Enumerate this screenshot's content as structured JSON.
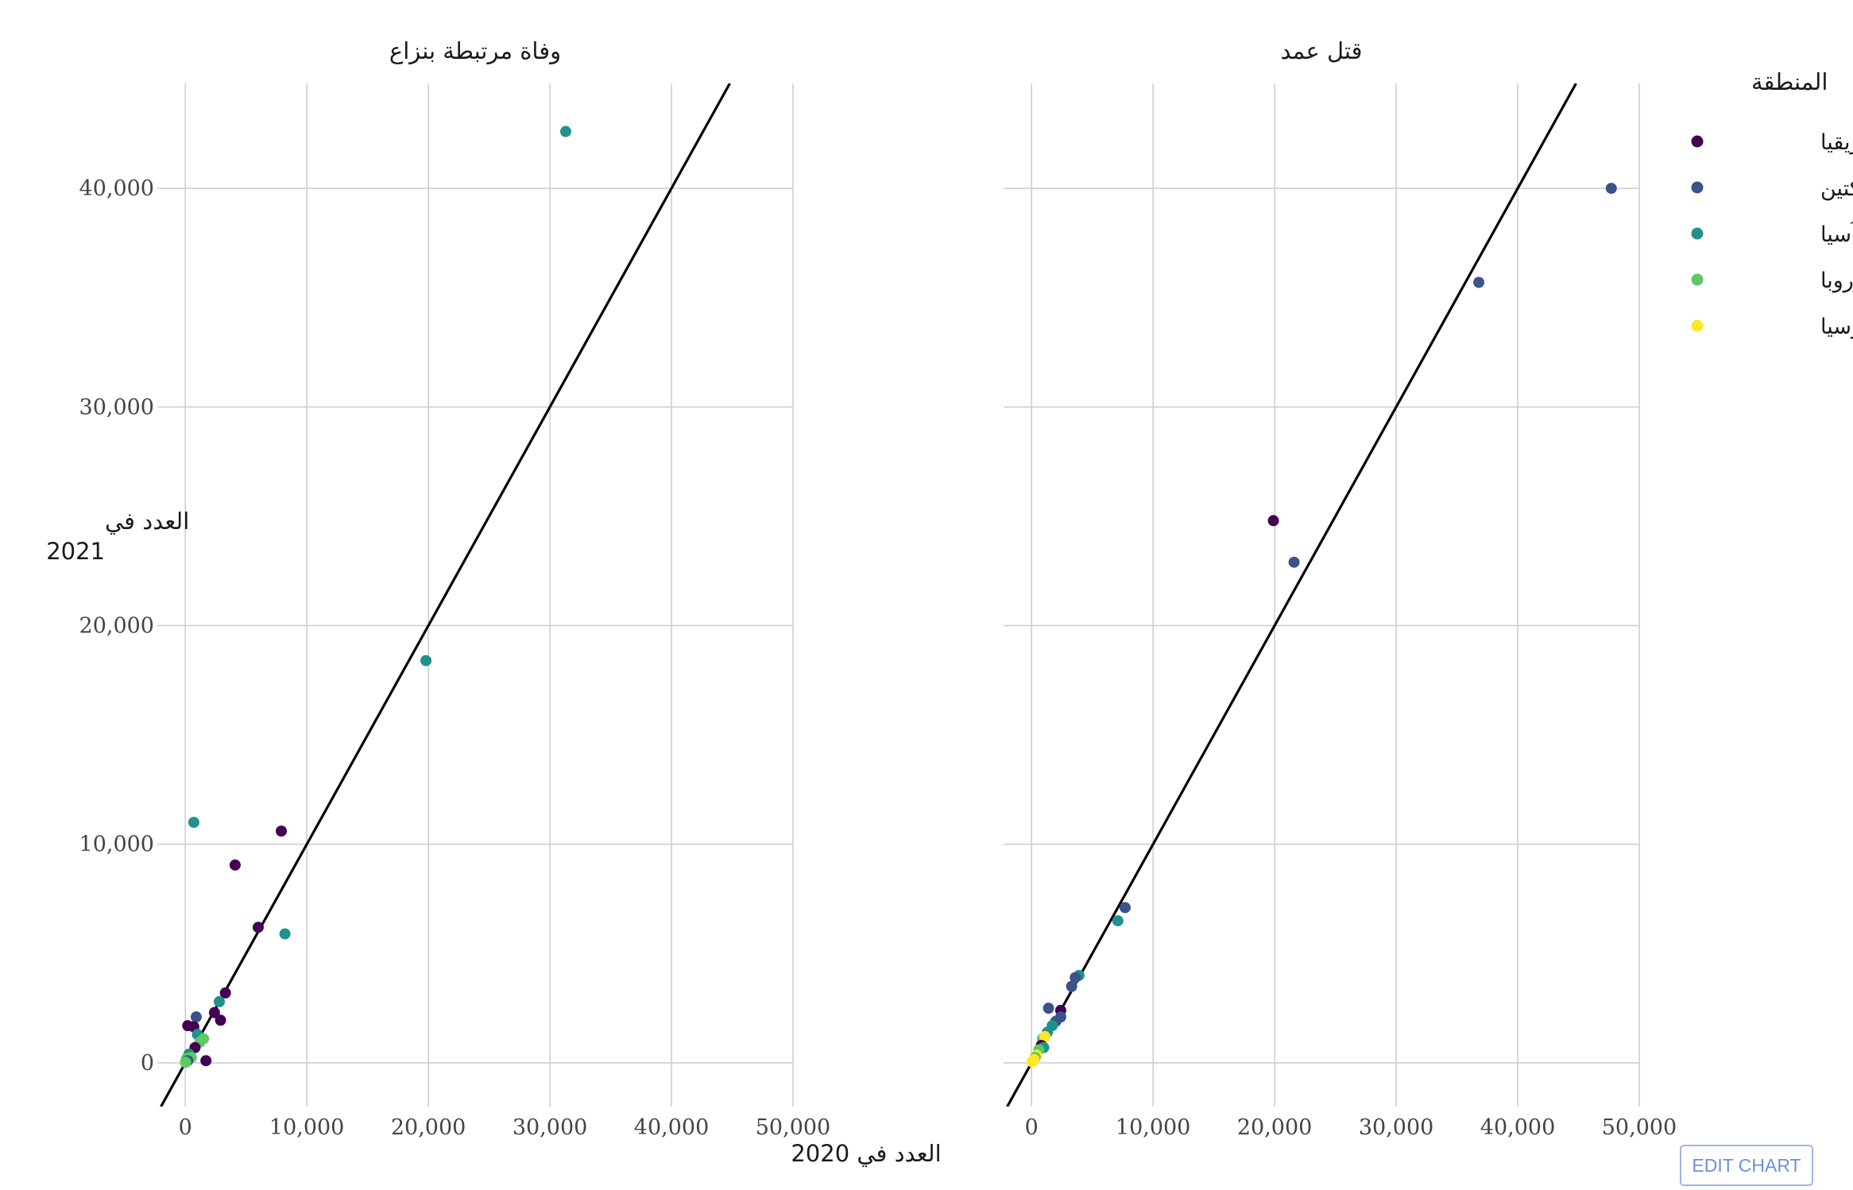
{
  "button": {
    "edit_chart": "EDIT CHART"
  },
  "chart_data": {
    "type": "scatter",
    "facets": [
      "وفاة مرتبطة بنزاع",
      "قتل عمد"
    ],
    "xlabel": "العدد في 2020",
    "ylabel": [
      "العدد في",
      "2021"
    ],
    "x_ticks": [
      "0",
      "10,000",
      "20,000",
      "30,000",
      "40,000",
      "50,000"
    ],
    "y_ticks": [
      "0",
      "10,000",
      "20,000",
      "30,000",
      "40,000"
    ],
    "xlim": [
      -2300,
      50000
    ],
    "ylim": [
      -2000,
      44800
    ],
    "reference_line": "y = x",
    "grid": true,
    "legend": {
      "title": "المنطقة",
      "position": "right",
      "entries": [
        {
          "label": "إفريقيا",
          "color": "#440154"
        },
        {
          "label": "الأمريكتين",
          "color": "#3b528b"
        },
        {
          "label": "آسيا",
          "color": "#21918c"
        },
        {
          "label": "أوروبا",
          "color": "#5ec962"
        },
        {
          "label": "أوقيانوسيا",
          "color": "#fde725"
        }
      ]
    },
    "panels": [
      {
        "title": "وفاة مرتبطة بنزاع",
        "points": [
          {
            "region": "آسيا",
            "x": 31300,
            "y": 42600
          },
          {
            "region": "آسيا",
            "x": 19800,
            "y": 18400
          },
          {
            "region": "آسيا",
            "x": 700,
            "y": 11000
          },
          {
            "region": "إفريقيا",
            "x": 7900,
            "y": 10600
          },
          {
            "region": "إفريقيا",
            "x": 4100,
            "y": 9050
          },
          {
            "region": "إفريقيا",
            "x": 6000,
            "y": 6200
          },
          {
            "region": "آسيا",
            "x": 8200,
            "y": 5900
          },
          {
            "region": "إفريقيا",
            "x": 3300,
            "y": 3200
          },
          {
            "region": "آسيا",
            "x": 2800,
            "y": 2800
          },
          {
            "region": "إفريقيا",
            "x": 2400,
            "y": 2300
          },
          {
            "region": "إفريقيا",
            "x": 2900,
            "y": 1950
          },
          {
            "region": "الأمريكتين",
            "x": 900,
            "y": 2100
          },
          {
            "region": "إفريقيا",
            "x": 200,
            "y": 1700
          },
          {
            "region": "إفريقيا",
            "x": 700,
            "y": 1650
          },
          {
            "region": "آسيا",
            "x": 1000,
            "y": 1300
          },
          {
            "region": "أوروبا",
            "x": 1500,
            "y": 1100
          },
          {
            "region": "أوروبا",
            "x": 1200,
            "y": 950
          },
          {
            "region": "إفريقيا",
            "x": 800,
            "y": 700
          },
          {
            "region": "إفريقيا",
            "x": 1700,
            "y": 100
          },
          {
            "region": "آسيا",
            "x": 300,
            "y": 400
          },
          {
            "region": "أوروبا",
            "x": 500,
            "y": 250
          },
          {
            "region": "أوروبا",
            "x": 100,
            "y": 200
          },
          {
            "region": "الأمريكتين",
            "x": 200,
            "y": 100
          },
          {
            "region": "آسيا",
            "x": 50,
            "y": 50
          },
          {
            "region": "أوروبا",
            "x": 20,
            "y": 20
          }
        ]
      },
      {
        "title": "قتل عمد",
        "points": [
          {
            "region": "الأمريكتين",
            "x": 47700,
            "y": 40000
          },
          {
            "region": "الأمريكتين",
            "x": 36800,
            "y": 35700
          },
          {
            "region": "إفريقيا",
            "x": 19900,
            "y": 24800
          },
          {
            "region": "الأمريكتين",
            "x": 21600,
            "y": 22900
          },
          {
            "region": "الأمريكتين",
            "x": 7700,
            "y": 7100
          },
          {
            "region": "آسيا",
            "x": 7100,
            "y": 6500
          },
          {
            "region": "آسيا",
            "x": 3900,
            "y": 4000
          },
          {
            "region": "الأمريكتين",
            "x": 3600,
            "y": 3900
          },
          {
            "region": "الأمريكتين",
            "x": 3300,
            "y": 3500
          },
          {
            "region": "الأمريكتين",
            "x": 1400,
            "y": 2500
          },
          {
            "region": "إفريقيا",
            "x": 2400,
            "y": 2400
          },
          {
            "region": "الأمريكتين",
            "x": 2400,
            "y": 2100
          },
          {
            "region": "الأمريكتين",
            "x": 2000,
            "y": 1900
          },
          {
            "region": "آسيا",
            "x": 1700,
            "y": 1700
          },
          {
            "region": "آسيا",
            "x": 1300,
            "y": 1400
          },
          {
            "region": "أوروبا",
            "x": 900,
            "y": 1100
          },
          {
            "region": "أوقيانوسيا",
            "x": 1100,
            "y": 1200
          },
          {
            "region": "إفريقيا",
            "x": 800,
            "y": 800
          },
          {
            "region": "آسيا",
            "x": 1000,
            "y": 700
          },
          {
            "region": "أوروبا",
            "x": 600,
            "y": 600
          },
          {
            "region": "أوقيانوسيا",
            "x": 400,
            "y": 350
          },
          {
            "region": "أوروبا",
            "x": 300,
            "y": 250
          },
          {
            "region": "أوقيانوسيا",
            "x": 200,
            "y": 150
          },
          {
            "region": "أوقيانوسيا",
            "x": 50,
            "y": 50
          }
        ]
      }
    ]
  }
}
